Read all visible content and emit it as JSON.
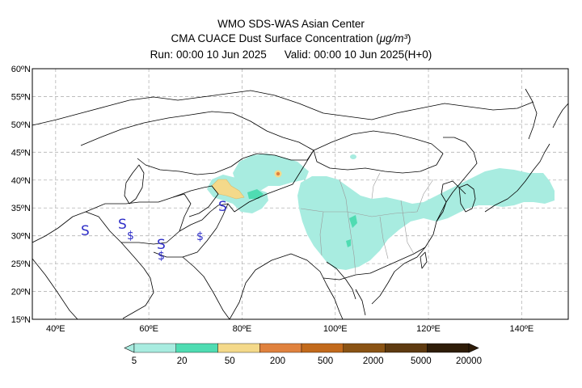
{
  "header": {
    "line1": "WMO SDS-WAS Asian Center",
    "line2_prefix": "CMA CUACE Dust Surface Concentration (",
    "line2_unit": "μg/m³",
    "line2_suffix": ")",
    "run": "Run: 00:00 10 Jun 2025",
    "valid": "Valid: 00:00 10 Jun 2025(H+0)"
  },
  "axes": {
    "lat_labels": [
      "60ºN",
      "55ºN",
      "50ºN",
      "45ºN",
      "40ºN",
      "35ºN",
      "30ºN",
      "25ºN",
      "20ºN",
      "15ºN"
    ],
    "lon_labels": [
      "40ºE",
      "60ºE",
      "80ºE",
      "100ºE",
      "120ºE",
      "140ºE"
    ],
    "lat_range": [
      15,
      60
    ],
    "lon_range": [
      35,
      150
    ],
    "grid": true
  },
  "colorbar": {
    "levels": [
      "5",
      "20",
      "50",
      "200",
      "500",
      "2000",
      "5000",
      "20000"
    ],
    "colors": [
      "#a8ece0",
      "#4fdcb2",
      "#f4d98a",
      "#e0823e",
      "#c26a1c",
      "#8a5314",
      "#5e3a10",
      "#2e1c08"
    ]
  },
  "station_markers": [
    "S",
    "S",
    "$",
    "S",
    "$",
    "$",
    "S"
  ]
}
